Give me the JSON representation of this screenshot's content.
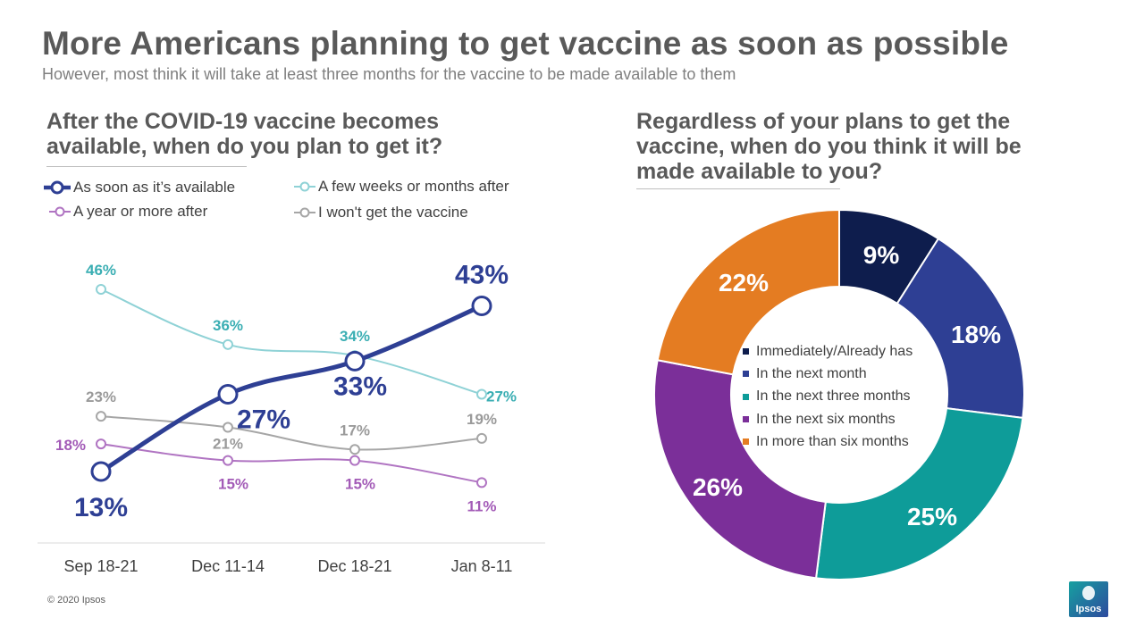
{
  "header": {
    "title": "More Americans planning to get vaccine as soon as possible",
    "subtitle": "However, most think it will take at least three months for the vaccine to be made available to them"
  },
  "left_panel": {
    "question": "After the COVID-19 vaccine becomes available, when do you plan to get it?"
  },
  "right_panel": {
    "question": "Regardless of your plans to get the vaccine, when do you think it will be made available to you?"
  },
  "footer": {
    "copyright": "© 2020 Ipsos",
    "logo_text": "Ipsos"
  },
  "chart_data": [
    {
      "type": "line",
      "categories": [
        "Sep 18-21",
        "Dec 11-14",
        "Dec 18-21",
        "Jan 8-11"
      ],
      "ylim": [
        0,
        50
      ],
      "grid": false,
      "legend_position": "top",
      "series": [
        {
          "name": "As soon as it’s available",
          "values": [
            13,
            27,
            33,
            43
          ],
          "labels": [
            "13%",
            "27%",
            "33%",
            "43%"
          ],
          "color": "#2e3f94",
          "emphasis": true
        },
        {
          "name": "A few weeks or months after",
          "values": [
            46,
            36,
            34,
            27
          ],
          "labels": [
            "46%",
            "36%",
            "34%",
            "27%"
          ],
          "color": "#8fd2d6",
          "label_color": "#3aaeb3"
        },
        {
          "name": "A year or more after",
          "values": [
            18,
            15,
            15,
            11
          ],
          "labels": [
            "18%",
            "15%",
            "15%",
            "11%"
          ],
          "color": "#b074c2",
          "label_color": "#a35bb7"
        },
        {
          "name": "I won't get the vaccine",
          "values": [
            23,
            21,
            17,
            19
          ],
          "labels": [
            "23%",
            "21%",
            "17%",
            "19%"
          ],
          "color": "#a6a6a6",
          "label_color": "#9a9a9a"
        }
      ]
    },
    {
      "type": "pie",
      "donut": true,
      "categories": [
        "Immediately/Already has",
        "In the next month",
        "In the next three months",
        "In the next six months",
        "In more than six months"
      ],
      "values": [
        9,
        18,
        25,
        26,
        22
      ],
      "labels": [
        "9%",
        "18%",
        "25%",
        "26%",
        "22%"
      ],
      "colors": [
        "#0e1d4d",
        "#2e3f94",
        "#0e9c99",
        "#7b2f99",
        "#e47c22"
      ],
      "legend_position": "center"
    }
  ]
}
